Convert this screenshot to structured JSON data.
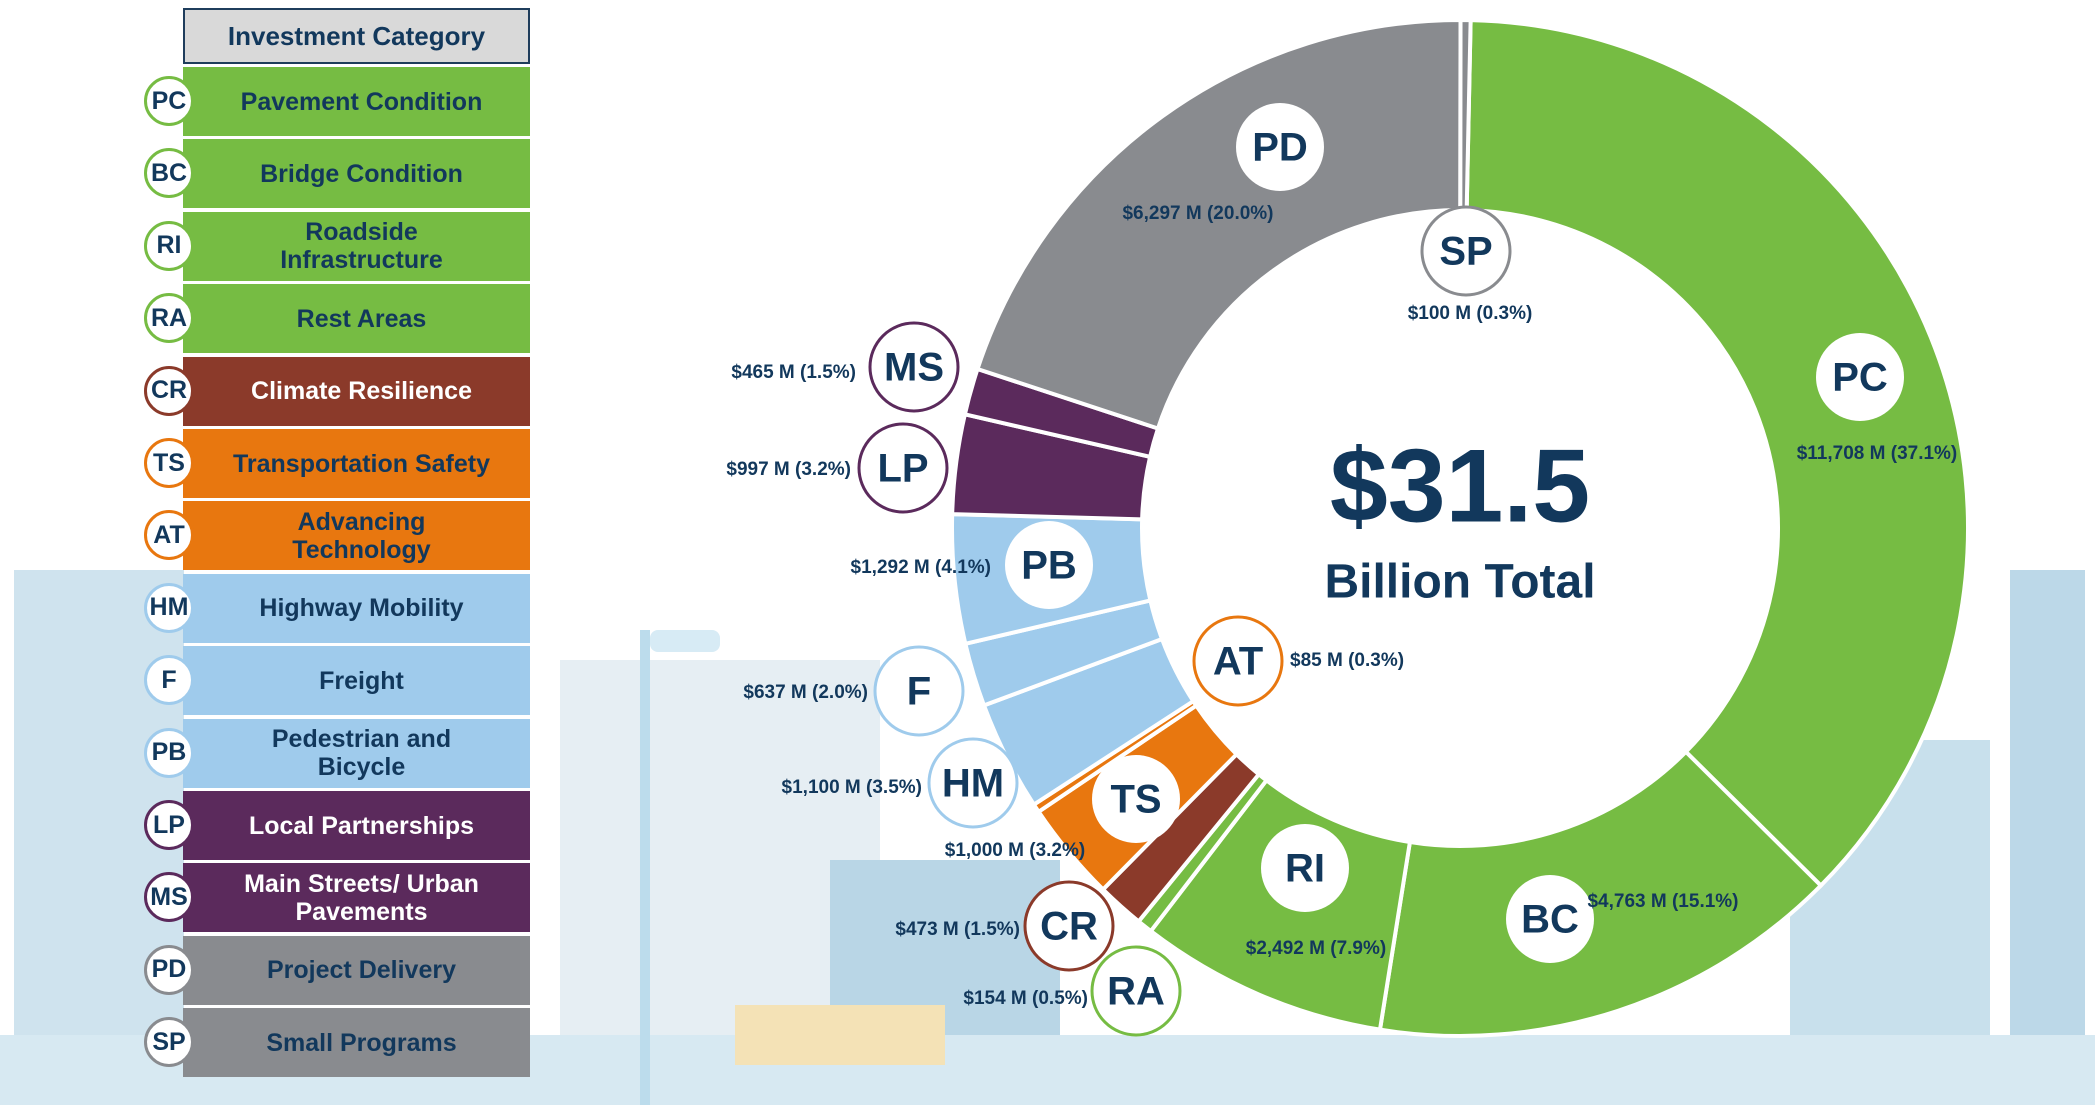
{
  "chart_data": {
    "type": "donut",
    "legend_title": "Investment Category",
    "center_value": "$31.5",
    "center_label": "Billion Total",
    "categories": [
      "Pavement Condition",
      "Bridge Condition",
      "Roadside Infrastructure",
      "Rest Areas",
      "Climate Resilience",
      "Transportation Safety",
      "Advancing Technology",
      "Highway Mobility",
      "Freight",
      "Pedestrian and Bicycle",
      "Local Partnerships",
      "Main Streets/ Urban Pavements",
      "Project Delivery",
      "Small Programs"
    ],
    "abbreviations": [
      "PC",
      "BC",
      "RI",
      "RA",
      "CR",
      "TS",
      "AT",
      "HM",
      "F",
      "PB",
      "LP",
      "MS",
      "PD",
      "SP"
    ],
    "values": [
      11708,
      4763,
      2492,
      154,
      473,
      1000,
      85,
      1100,
      637,
      1292,
      997,
      465,
      6297,
      100
    ],
    "value_labels": [
      "$11,708 M (37.1%)",
      "$4,763 M (15.1%)",
      "$2,492 M (7.9%)",
      "$154 M (0.5%)",
      "$473 M (1.5%)",
      "$1,000 M (3.2%)",
      "$85 M (0.3%)",
      "$1,100 M (3.5%)",
      "$637 M (2.0%)",
      "$1,292 M (4.1%)",
      "$997 M (3.2%)",
      "$465 M (1.5%)",
      "$6,297 M (20.0%)",
      "$100 M (0.3%)"
    ],
    "colors": [
      "#76bc43",
      "#76bc43",
      "#76bc43",
      "#76bc43",
      "#8b3a2a",
      "#e8770f",
      "#e8770f",
      "#9fcbec",
      "#9fcbec",
      "#9fcbec",
      "#5b2a5c",
      "#5b2a5c",
      "#898b8f",
      "#898b8f"
    ]
  }
}
